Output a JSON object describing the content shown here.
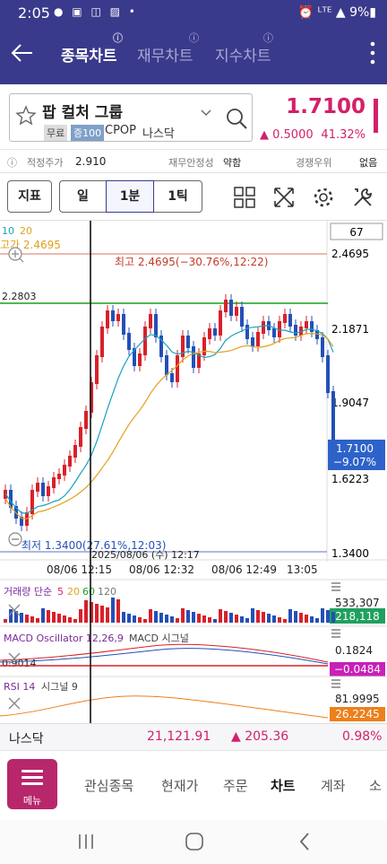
{
  "status": {
    "time": "2:05",
    "icons": "● ▣ ◫ ▨ •",
    "right": "⏰ ᴸᵀᴱ ▲ 9%▮"
  },
  "header": {
    "tabs": [
      {
        "label": "종목차트",
        "active": true,
        "sub": "ⓘ"
      },
      {
        "label": "재무차트",
        "active": false,
        "sub": "ⓘ"
      },
      {
        "label": "지수차트",
        "active": false,
        "sub": "ⓘ"
      }
    ]
  },
  "stock": {
    "name": "팝 컬처 그룹",
    "tag_free": "무료",
    "tag_margin": "증100",
    "ticker": "CPOP",
    "exchange": "나스닥",
    "price": "1.7100",
    "change": "▲ 0.5000",
    "change_pct": "41.32%"
  },
  "info": {
    "fair_label": "적정주가",
    "fair_value": "2.910",
    "stability_label": "재무안정성",
    "stability_value": "약함",
    "rank_label": "경쟁우위",
    "rank_value": "없음"
  },
  "toolbar": {
    "indicator": "지표",
    "period": "일",
    "interval": "1분",
    "tick": "1틱"
  },
  "chart": {
    "ma_legend_a": "10",
    "ma_legend_b": "20",
    "high_left": "고가 2.4695",
    "high_annot": "최고 2.4695(−30.76%,12:22)",
    "low_annot": "최저 1.3400(27.61%,12:03)",
    "cross_label": "2.2803",
    "cursor_date": "2025/08/06 (수) 12:17",
    "zoom_box": "67",
    "price_axis": [
      "2.4695",
      "2.1871",
      "1.9047",
      "1.6223",
      "1.3400"
    ],
    "cur_price": "1.7100",
    "cur_pct": "−9.07%",
    "time_axis": [
      "08/06 12:15",
      "08/06 12:32",
      "08/06 12:49",
      "13:05"
    ],
    "vol_label_a": "거래량 단순",
    "vol_label_b": "5",
    "vol_label_c": "20",
    "vol_label_d": "60",
    "vol_label_e": "120",
    "vol_top": "533,307",
    "vol_cur": "218,118",
    "macd_label": "MACD Oscillator 12,26,9",
    "macd_label_b": "MACD 시그널",
    "macd_left": "0.9014",
    "macd_top": "0.1824",
    "macd_cur": "−0.0484",
    "rsi_label": "RSI 14",
    "rsi_label_b": "시그널 9",
    "rsi_top": "81.9995",
    "rsi_cur": "26.2245",
    "colors": {
      "up": "#d8212a",
      "down": "#2350b8",
      "ma1": "#17a2c0",
      "ma2": "#e0a21a",
      "cross": "#1a9f1a",
      "highline": "#e07060"
    }
  },
  "bticker": {
    "name": "나스닥",
    "value": "21,121.91",
    "change": "▲ 205.36",
    "pct": "0.98%"
  },
  "bnav": {
    "menu": "메뉴",
    "items": [
      {
        "label": "관심종목",
        "active": false
      },
      {
        "label": "현재가",
        "active": false
      },
      {
        "label": "주문",
        "active": false
      },
      {
        "label": "차트",
        "active": true
      },
      {
        "label": "계좌",
        "active": false
      },
      {
        "label": "소",
        "active": false
      }
    ]
  }
}
